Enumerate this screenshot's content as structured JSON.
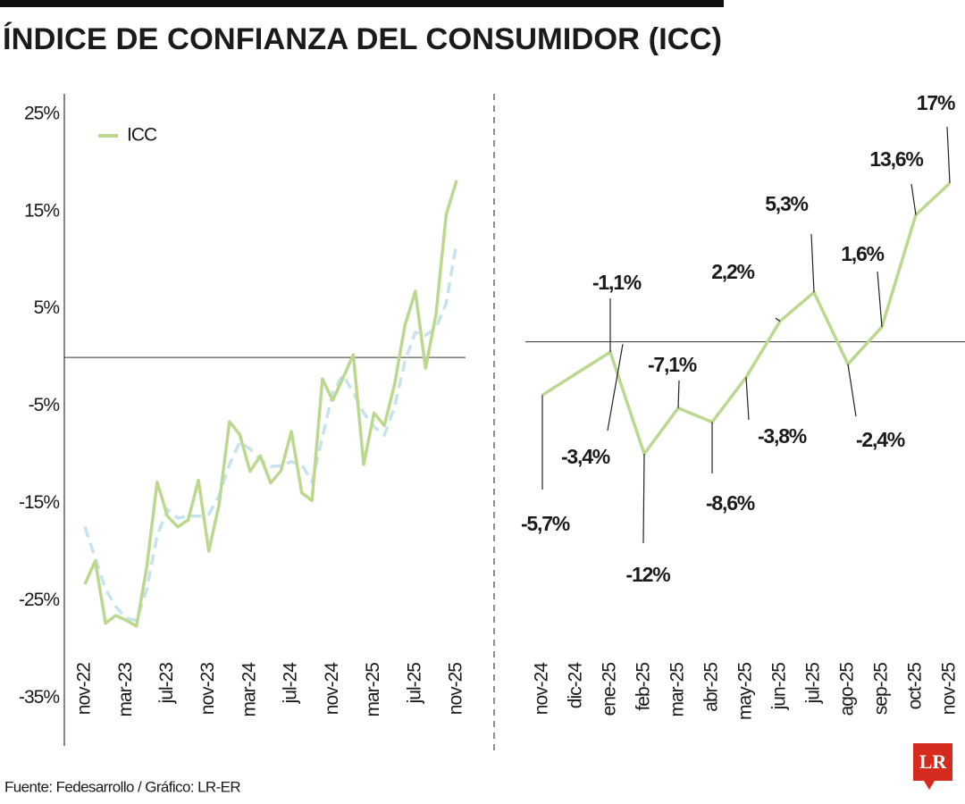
{
  "title": "ÍNDICE DE CONFIANZA DEL CONSUMIDOR (ICC)",
  "source": "Fuente: Fedesarrollo / Gráfico: LR-ER",
  "logo": "LR",
  "chart_data": [
    {
      "type": "line",
      "categories": [
        "nov-22",
        null,
        null,
        null,
        "mar-23",
        null,
        null,
        null,
        "jul-23",
        null,
        null,
        null,
        "nov-23",
        null,
        null,
        null,
        "mar-24",
        null,
        null,
        null,
        "jul-24",
        null,
        null,
        null,
        "nov-24",
        null,
        null,
        null,
        "mar-25",
        null,
        null,
        null,
        "jul-25",
        null,
        null,
        null,
        "nov-25"
      ],
      "series": [
        {
          "name": "ICC",
          "color": "#bcd88f",
          "values": [
            -23.3,
            -20.9,
            -27.3,
            -26.5,
            -27.0,
            -27.6,
            -21.5,
            -12.8,
            -16.3,
            -17.4,
            -16.7,
            -12.6,
            -19.9,
            -15.1,
            -6.6,
            -7.9,
            -11.7,
            -10.1,
            -12.9,
            -11.6,
            -7.6,
            -13.9,
            -14.7,
            -2.2,
            -4.4,
            -2.1,
            0.3,
            -11.0,
            -5.7,
            -7.0,
            -2.7,
            3.3,
            6.8,
            -1.1,
            4.4,
            14.7,
            18.2
          ]
        },
        {
          "color": "#c5e3ee",
          "dashed": true,
          "values": [
            -17.4,
            -20.6,
            -23.8,
            -25.6,
            -26.8,
            -27.0,
            -23.8,
            -18.3,
            -15.6,
            -16.5,
            -16.3,
            -16.3,
            -16.1,
            -14.2,
            -11.0,
            -8.7,
            -9.4,
            -10.5,
            -11.2,
            -11.1,
            -10.7,
            -11.0,
            -12.8,
            -8.2,
            -3.6,
            -1.8,
            -3.6,
            -5.7,
            -7.1,
            -8.0,
            -5.0,
            -0.4,
            2.6,
            2.3,
            3.0,
            5.6,
            11.8
          ]
        }
      ],
      "ylim": [
        -40,
        27
      ],
      "yticks": [
        {
          "value": 25,
          "label": "25%"
        },
        {
          "value": 15,
          "label": "15%"
        },
        {
          "value": 5,
          "label": "5%"
        },
        {
          "value": -5,
          "label": "-5%"
        },
        {
          "value": -15,
          "label": "-15%"
        },
        {
          "value": -25,
          "label": "-25%"
        },
        {
          "value": -35,
          "label": "-35%"
        }
      ],
      "legend": "top-left"
    },
    {
      "type": "line",
      "categories": [
        "nov-24",
        "dic-24",
        "ene-25",
        "feb-25",
        "mar-25",
        "abr-25",
        "may-25",
        "jun-25",
        "jul-25",
        "ago-25",
        "sep-25",
        "oct-25",
        "nov-25"
      ],
      "color": "#bcd88f",
      "values": [
        -5.7,
        -3.4,
        -1.1,
        -12,
        -7.1,
        -8.6,
        -3.8,
        2.2,
        5.3,
        -2.4,
        1.6,
        13.6,
        17
      ],
      "value_labels": [
        "-5,7%",
        "-3,4%",
        "-1,1%",
        "-12%",
        "-7,1%",
        "-8,6%",
        "-3,8%",
        "2,2%",
        "5,3%",
        "-2,4%",
        "1,6%",
        "13,6%",
        "17%"
      ]
    }
  ]
}
